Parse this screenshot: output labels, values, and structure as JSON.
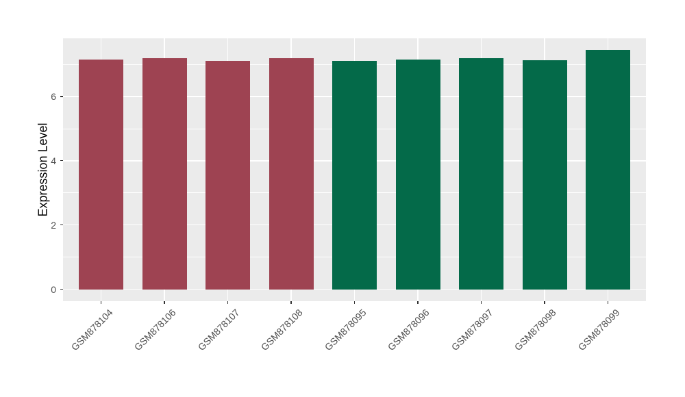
{
  "chart_data": {
    "type": "bar",
    "title": "",
    "xlabel": "",
    "ylabel": "Expression Level",
    "categories": [
      "GSM878104",
      "GSM878106",
      "GSM878107",
      "GSM878108",
      "GSM878095",
      "GSM878096",
      "GSM878097",
      "GSM878098",
      "GSM878099"
    ],
    "values": [
      7.16,
      7.19,
      7.11,
      7.19,
      7.1,
      7.16,
      7.2,
      7.13,
      7.44
    ],
    "bar_colors": [
      "#9E4352",
      "#9E4352",
      "#9E4352",
      "#9E4352",
      "#046A49",
      "#046A49",
      "#046A49",
      "#046A49",
      "#046A49"
    ],
    "yticks": [
      0,
      2,
      4,
      6
    ],
    "y_minor_gridlines": [
      1,
      3,
      5,
      7
    ],
    "ylim": [
      -0.37,
      7.81
    ],
    "grid": true,
    "legend_position": "none",
    "panel_background": "#EBEBEB",
    "gridline_color": "#FFFFFF",
    "tick_mark_color": "#333333",
    "tick_label_color": "#4D4D4D",
    "axis_title_color": "#000000"
  }
}
